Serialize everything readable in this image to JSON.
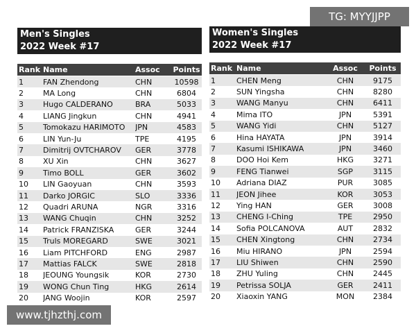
{
  "tables": [
    {
      "title": "Men's Singles",
      "subtitle": "2022 Week #17",
      "columns": [
        "Rank",
        "Name",
        "Assoc",
        "Points"
      ],
      "rows": [
        [
          1,
          "FAN Zhendong",
          "CHN",
          10598
        ],
        [
          2,
          "MA Long",
          "CHN",
          6804
        ],
        [
          3,
          "Hugo CALDERANO",
          "BRA",
          5033
        ],
        [
          4,
          "LIANG Jingkun",
          "CHN",
          4941
        ],
        [
          5,
          "Tomokazu HARIMOTO",
          "JPN",
          4583
        ],
        [
          6,
          "LIN Yun-Ju",
          "TPE",
          4195
        ],
        [
          7,
          "Dimitrij OVTCHAROV",
          "GER",
          3778
        ],
        [
          8,
          "XU Xin",
          "CHN",
          3627
        ],
        [
          9,
          "Timo BOLL",
          "GER",
          3602
        ],
        [
          10,
          "LIN Gaoyuan",
          "CHN",
          3593
        ],
        [
          11,
          "Darko JORGIC",
          "SLO",
          3336
        ],
        [
          12,
          "Quadri ARUNA",
          "NGR",
          3316
        ],
        [
          13,
          "WANG Chuqin",
          "CHN",
          3252
        ],
        [
          14,
          "Patrick FRANZISKA",
          "GER",
          3244
        ],
        [
          15,
          "Truls MOREGARD",
          "SWE",
          3021
        ],
        [
          16,
          "Liam PITCHFORD",
          "ENG",
          2987
        ],
        [
          17,
          "Mattias FALCK",
          "SWE",
          2818
        ],
        [
          18,
          "JEOUNG Youngsik",
          "KOR",
          2730
        ],
        [
          19,
          "WONG Chun Ting",
          "HKG",
          2614
        ],
        [
          20,
          "JANG Woojin",
          "KOR",
          2597
        ]
      ]
    },
    {
      "title": "Women's Singles",
      "subtitle": "2022 Week #17",
      "columns": [
        "Rank",
        "Name",
        "Assoc",
        "Points"
      ],
      "rows": [
        [
          1,
          "CHEN Meng",
          "CHN",
          9175
        ],
        [
          2,
          "SUN Yingsha",
          "CHN",
          8280
        ],
        [
          3,
          "WANG Manyu",
          "CHN",
          6411
        ],
        [
          4,
          "Mima ITO",
          "JPN",
          5391
        ],
        [
          5,
          "WANG Yidi",
          "CHN",
          5127
        ],
        [
          6,
          "Hina HAYATA",
          "JPN",
          3914
        ],
        [
          7,
          "Kasumi ISHIKAWA",
          "JPN",
          3460
        ],
        [
          8,
          "DOO Hoi Kem",
          "HKG",
          3271
        ],
        [
          9,
          "FENG Tianwei",
          "SGP",
          3115
        ],
        [
          10,
          "Adriana DIAZ",
          "PUR",
          3085
        ],
        [
          11,
          "JEON Jihee",
          "KOR",
          3053
        ],
        [
          12,
          "Ying HAN",
          "GER",
          3008
        ],
        [
          13,
          "CHENG I-Ching",
          "TPE",
          2950
        ],
        [
          14,
          "Sofia POLCANOVA",
          "AUT",
          2832
        ],
        [
          15,
          "CHEN Xingtong",
          "CHN",
          2734
        ],
        [
          16,
          "Miu HIRANO",
          "JPN",
          2594
        ],
        [
          17,
          "LIU Shiwen",
          "CHN",
          2590
        ],
        [
          18,
          "ZHU Yuling",
          "CHN",
          2445
        ],
        [
          19,
          "Petrissa SOLJA",
          "GER",
          2411
        ],
        [
          20,
          "Xiaoxin YANG",
          "MON",
          2384
        ]
      ]
    }
  ],
  "watermarks": [
    "TG: MYYJJPP",
    "www.tjhzthj.com"
  ]
}
